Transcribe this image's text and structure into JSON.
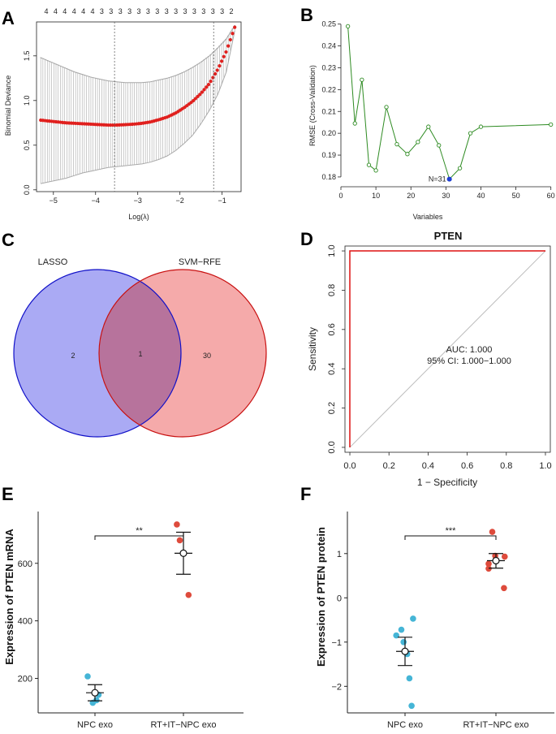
{
  "panels": {
    "A": {
      "letter": "A",
      "chart_data": {
        "type": "line",
        "title": "",
        "xlabel": "Log(λ)",
        "ylabel": "Binomial Deviance",
        "xlim": [
          -5.4,
          -0.55
        ],
        "ylim": [
          -0.02,
          1.88
        ],
        "xticks": [
          -5,
          -4,
          -3,
          -2,
          -1
        ],
        "yticks": [
          0.0,
          0.5,
          1.0,
          1.5
        ],
        "ytick_labels": [
          "0.0",
          "0.5",
          "1.0",
          "1.5"
        ],
        "top_axis_labels": [
          "4",
          "4",
          "4",
          "4",
          "4",
          "4",
          "3",
          "3",
          "3",
          "3",
          "3",
          "3",
          "3",
          "3",
          "3",
          "3",
          "3",
          "3",
          "3",
          "3",
          "2"
        ],
        "vlines": [
          -3.55,
          -1.2
        ],
        "x": [
          -5.3,
          -5.1,
          -4.9,
          -4.7,
          -4.5,
          -4.3,
          -4.1,
          -3.9,
          -3.7,
          -3.5,
          -3.3,
          -3.1,
          -2.9,
          -2.7,
          -2.5,
          -2.3,
          -2.1,
          -1.9,
          -1.7,
          -1.5,
          -1.3,
          -1.1,
          -0.9,
          -0.7
        ],
        "mean": [
          0.78,
          0.77,
          0.76,
          0.75,
          0.745,
          0.74,
          0.735,
          0.73,
          0.725,
          0.725,
          0.73,
          0.735,
          0.745,
          0.76,
          0.785,
          0.815,
          0.86,
          0.92,
          0.99,
          1.08,
          1.19,
          1.35,
          1.55,
          1.82
        ],
        "upper": [
          1.48,
          1.44,
          1.4,
          1.36,
          1.32,
          1.29,
          1.26,
          1.24,
          1.22,
          1.21,
          1.2,
          1.2,
          1.2,
          1.21,
          1.23,
          1.25,
          1.28,
          1.32,
          1.37,
          1.43,
          1.5,
          1.59,
          1.69,
          1.84
        ],
        "lower": [
          0.07,
          0.09,
          0.11,
          0.13,
          0.16,
          0.19,
          0.21,
          0.23,
          0.25,
          0.26,
          0.27,
          0.28,
          0.29,
          0.31,
          0.34,
          0.38,
          0.44,
          0.52,
          0.61,
          0.74,
          0.89,
          1.07,
          1.32,
          1.78
        ],
        "line_color": "#e0201e",
        "error_color": "#a9a9a9"
      }
    },
    "B": {
      "letter": "B",
      "chart_data": {
        "type": "line",
        "title": "",
        "xlabel": "Variables",
        "ylabel": "RMSE (Cross-Validation)",
        "xlim": [
          0,
          61
        ],
        "ylim": [
          0.177,
          0.251
        ],
        "xticks": [
          0,
          10,
          20,
          30,
          40,
          50,
          60
        ],
        "yticks": [
          0.18,
          0.19,
          0.2,
          0.21,
          0.22,
          0.23,
          0.24,
          0.25
        ],
        "ytick_labels": [
          "0.18",
          "0.19",
          "0.20",
          "0.21",
          "0.22",
          "0.23",
          "0.24",
          "0.25"
        ],
        "x": [
          2,
          4,
          6,
          8,
          10,
          13,
          16,
          19,
          22,
          25,
          28,
          31,
          34,
          37,
          40,
          60
        ],
        "y": [
          0.249,
          0.2045,
          0.2245,
          0.1855,
          0.183,
          0.212,
          0.195,
          0.1905,
          0.196,
          0.203,
          0.1945,
          0.179,
          0.184,
          0.2,
          0.203,
          0.204
        ],
        "highlight": {
          "x": 31,
          "y": 0.179,
          "label": "N=31"
        },
        "line_color": "#2e8b22",
        "highlight_color": "#1f3fd1",
        "label_color": "#d2334a"
      }
    },
    "C": {
      "letter": "C",
      "venn": {
        "left_label": "LASSO",
        "right_label": "SVM−RFE",
        "left_only": "2",
        "both": "1",
        "right_only": "30",
        "left_fill": "#aaaaf4",
        "left_stroke": "#1010c8",
        "right_fill": "#f5aaaa",
        "right_stroke": "#c81010",
        "overlap_fill": "#b7739c"
      }
    },
    "D": {
      "letter": "D",
      "chart_data": {
        "type": "line",
        "title": "PTEN",
        "xlabel": "1 − Specificity",
        "ylabel": "Sensitivity",
        "xlim": [
          -0.025,
          1.025
        ],
        "ylim": [
          -0.025,
          1.025
        ],
        "xticks": [
          0.0,
          0.2,
          0.4,
          0.6,
          0.8,
          1.0
        ],
        "yticks": [
          0.0,
          0.2,
          0.4,
          0.6,
          0.8,
          1.0
        ],
        "tick_labels": [
          "0.0",
          "0.2",
          "0.4",
          "0.6",
          "0.8",
          "1.0"
        ],
        "roc_x": [
          0,
          0,
          1
        ],
        "roc_y": [
          0,
          1,
          1
        ],
        "auc_text": "AUC: 1.000",
        "ci_text": "95% CI: 1.000−1.000",
        "roc_color": "#dd1111",
        "diag_color": "#bbbbbb"
      }
    },
    "E": {
      "letter": "E",
      "chart_data": {
        "type": "scatter",
        "title": "",
        "xlabel": "",
        "ylabel": "Expression of PTEN mRNA",
        "categories": [
          "NPC exo",
          "RT+IT−NPC exo"
        ],
        "ylim": [
          80,
          780
        ],
        "yticks": [
          200,
          400,
          600
        ],
        "ytick_labels": [
          "200",
          "400",
          "600"
        ],
        "groups": [
          {
            "name": "NPC exo",
            "points": [
              207,
              143,
              124,
              115
            ],
            "jitter": [
              -0.1,
              0.05,
              0.02,
              -0.03
            ],
            "mean": 150,
            "err_low": 122,
            "err_high": 178,
            "color": "#45b5d6"
          },
          {
            "name": "RT+IT−NPC exo",
            "points": [
              735,
              680,
              490
            ],
            "jitter": [
              -0.09,
              -0.05,
              0.07
            ],
            "mean": 635,
            "err_low": 562,
            "err_high": 708,
            "color": "#de4b3c"
          }
        ],
        "significance": "**"
      }
    },
    "F": {
      "letter": "F",
      "chart_data": {
        "type": "scatter",
        "title": "",
        "xlabel": "",
        "ylabel": "Expression of PTEN protein",
        "categories": [
          "NPC exo",
          "RT+IT−NPC exo"
        ],
        "ylim": [
          -2.6,
          1.95
        ],
        "yticks": [
          -2,
          -1,
          0,
          1
        ],
        "ytick_labels": [
          "−2",
          "−1",
          "0",
          "1"
        ],
        "groups": [
          {
            "name": "NPC exo",
            "points": [
              -0.47,
              -0.72,
              -0.85,
              -1.0,
              -1.27,
              -1.82,
              -2.44
            ],
            "jitter": [
              0.11,
              -0.05,
              -0.12,
              -0.02,
              0.03,
              0.06,
              0.09
            ],
            "mean": -1.21,
            "err_low": -1.53,
            "err_high": -0.89,
            "color": "#45b5d6"
          },
          {
            "name": "RT+IT−NPC exo",
            "points": [
              1.49,
              0.95,
              0.93,
              0.77,
              0.66,
              0.22
            ],
            "jitter": [
              -0.05,
              -0.01,
              0.12,
              -0.1,
              -0.1,
              0.11
            ],
            "mean": 0.84,
            "err_low": 0.67,
            "err_high": 1.0,
            "color": "#de4b3c"
          }
        ],
        "significance": "***"
      }
    }
  }
}
